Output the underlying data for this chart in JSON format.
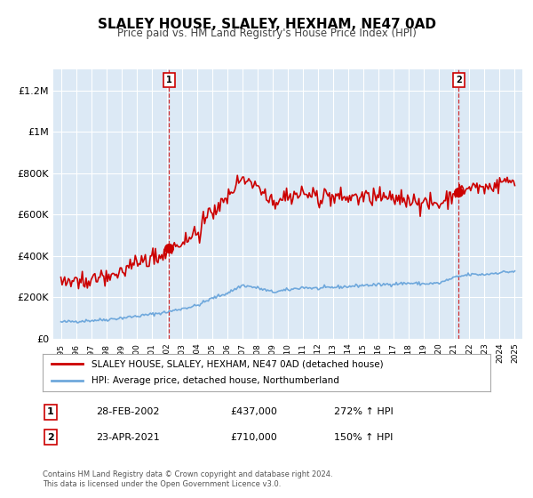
{
  "title": "SLALEY HOUSE, SLALEY, HEXHAM, NE47 0AD",
  "subtitle": "Price paid vs. HM Land Registry's House Price Index (HPI)",
  "background_color": "#dce9f5",
  "plot_bg_color": "#dce9f5",
  "ylim": [
    0,
    1300000
  ],
  "yticks": [
    0,
    200000,
    400000,
    600000,
    800000,
    1000000,
    1200000
  ],
  "ytick_labels": [
    "£0",
    "£200K",
    "£400K",
    "£600K",
    "£800K",
    "£1M",
    "£1.2M"
  ],
  "sale1_date": 2002.15,
  "sale1_price": 437000,
  "sale1_label": "1",
  "sale2_date": 2021.3,
  "sale2_price": 710000,
  "sale2_label": "2",
  "hpi_color": "#6fa8dc",
  "house_color": "#cc0000",
  "legend_house": "SLALEY HOUSE, SLALEY, HEXHAM, NE47 0AD (detached house)",
  "legend_hpi": "HPI: Average price, detached house, Northumberland",
  "note1_label": "1",
  "note1_date": "28-FEB-2002",
  "note1_price": "£437,000",
  "note1_hpi": "272% ↑ HPI",
  "note2_label": "2",
  "note2_date": "23-APR-2021",
  "note2_price": "£710,000",
  "note2_hpi": "150% ↑ HPI",
  "footer": "Contains HM Land Registry data © Crown copyright and database right 2024.\nThis data is licensed under the Open Government Licence v3.0."
}
